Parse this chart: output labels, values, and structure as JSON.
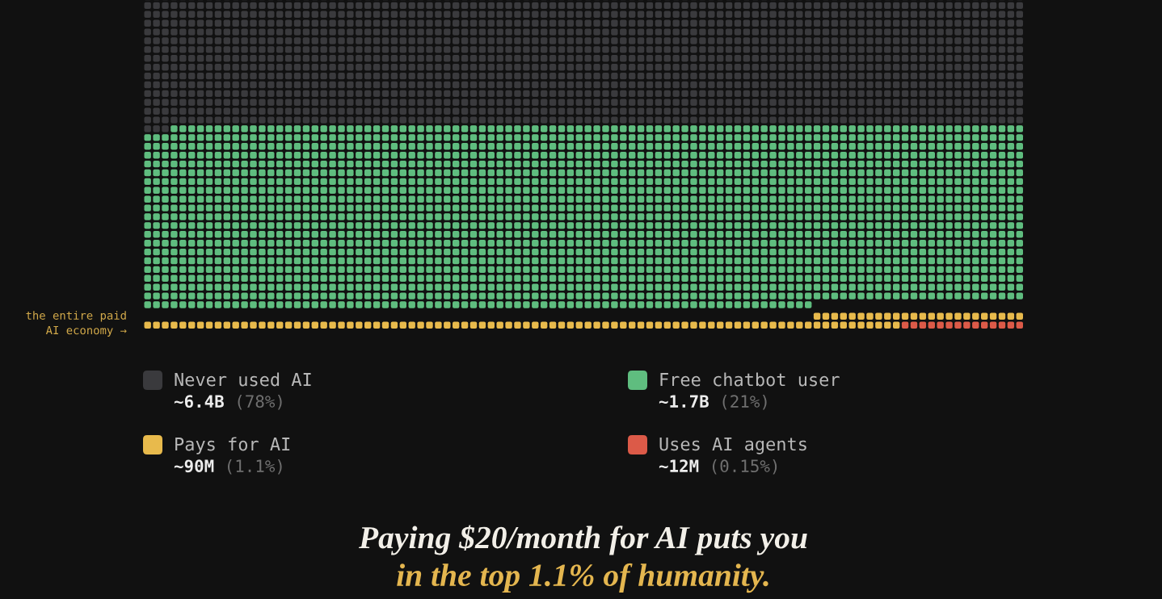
{
  "chart_data": {
    "type": "other",
    "title": "Paying $20/month for AI puts you",
    "subtitle": "in the top 1.1% of humanity.",
    "categories": [
      "Never used AI",
      "Free chatbot user",
      "Pays for AI",
      "Uses AI agents"
    ],
    "values": [
      6400000000,
      1700000000,
      90000000,
      12000000
    ],
    "value_labels": [
      "~6.4B (78%)",
      "~1.7B (21%)",
      "~90M (1.1%)",
      "~12M (0.15%)"
    ],
    "colors": [
      "#3a3a3d",
      "#5fbd7f",
      "#e8ba4c",
      "#dc5a48"
    ],
    "annotations": [
      "the entire paid\nAI economy →"
    ]
  }
}
